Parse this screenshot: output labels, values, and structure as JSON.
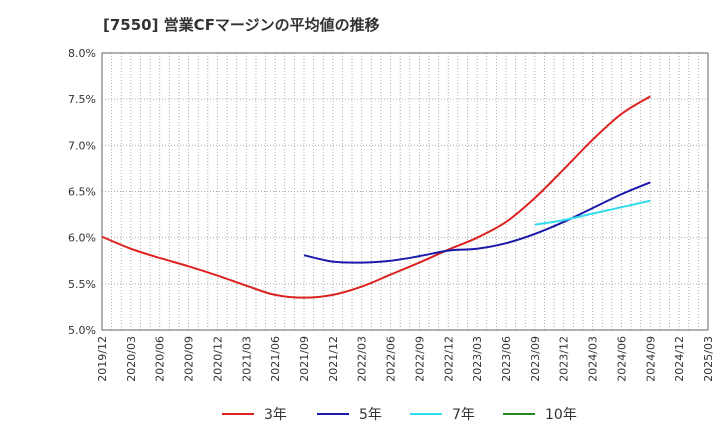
{
  "chart_data": {
    "type": "line",
    "title": "[7550]  営業CFマージンの平均値の推移",
    "xlabel": "",
    "ylabel": "",
    "x_ticks": [
      "2019/12",
      "2020/03",
      "2020/06",
      "2020/09",
      "2020/12",
      "2021/03",
      "2021/06",
      "2021/09",
      "2021/12",
      "2022/03",
      "2022/06",
      "2022/09",
      "2022/12",
      "2023/03",
      "2023/06",
      "2023/09",
      "2023/12",
      "2024/03",
      "2024/06",
      "2024/09",
      "2024/12",
      "2025/03"
    ],
    "y_ticks": [
      "5.0%",
      "5.5%",
      "6.0%",
      "6.5%",
      "7.0%",
      "7.5%",
      "8.0%"
    ],
    "ylim": [
      5.0,
      8.0
    ],
    "y_unit": "%",
    "grid": true,
    "legend_position": "bottom",
    "series": [
      {
        "name": "3年",
        "color": "#dd2222",
        "x": [
          "2019/12",
          "2020/03",
          "2020/06",
          "2020/09",
          "2020/12",
          "2021/03",
          "2021/06",
          "2021/09",
          "2021/12",
          "2022/03",
          "2022/06",
          "2022/09",
          "2022/12",
          "2023/03",
          "2023/06",
          "2023/09",
          "2023/12",
          "2024/03",
          "2024/06",
          "2024/09"
        ],
        "values": [
          6.01,
          5.88,
          5.78,
          5.69,
          5.59,
          5.48,
          5.38,
          5.35,
          5.38,
          5.47,
          5.6,
          5.73,
          5.87,
          6.0,
          6.17,
          6.43,
          6.74,
          7.06,
          7.34,
          7.53
        ]
      },
      {
        "name": "5年",
        "color": "#1a1aaa",
        "x": [
          "2021/09",
          "2021/12",
          "2022/03",
          "2022/06",
          "2022/09",
          "2022/12",
          "2023/03",
          "2023/06",
          "2023/09",
          "2023/12",
          "2024/03",
          "2024/06",
          "2024/09"
        ],
        "values": [
          5.81,
          5.74,
          5.73,
          5.75,
          5.8,
          5.86,
          5.88,
          5.94,
          6.04,
          6.17,
          6.32,
          6.47,
          6.6
        ]
      },
      {
        "name": "7年",
        "color": "#33ddee",
        "x": [
          "2023/09",
          "2023/12",
          "2024/03",
          "2024/06",
          "2024/09"
        ],
        "values": [
          6.14,
          6.19,
          6.26,
          6.33,
          6.4
        ]
      },
      {
        "name": "10年",
        "color": "#228822",
        "x": [],
        "values": []
      }
    ]
  }
}
